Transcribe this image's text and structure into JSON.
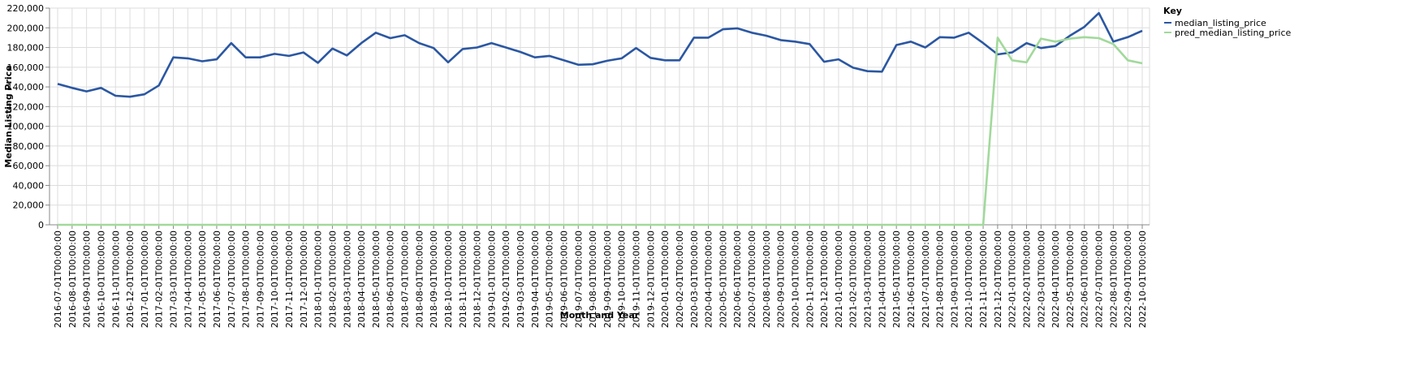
{
  "chart_data": {
    "type": "line",
    "xlabel": "Month and Year",
    "ylabel": "Median Listing Price",
    "ylim": [
      0,
      220000
    ],
    "yticks": [
      0,
      20000,
      40000,
      60000,
      80000,
      100000,
      120000,
      140000,
      160000,
      180000,
      200000,
      220000
    ],
    "ytick_labels": [
      "0",
      "20,000",
      "40,000",
      "60,000",
      "80,000",
      "100,000",
      "120,000",
      "140,000",
      "160,000",
      "180,000",
      "200,000",
      "220,000"
    ],
    "grid": true,
    "legend_position": "top-right",
    "legend_title": "Key",
    "x": [
      "2016-07-01T00:00:00",
      "2016-08-01T00:00:00",
      "2016-09-01T00:00:00",
      "2016-10-01T00:00:00",
      "2016-11-01T00:00:00",
      "2016-12-01T00:00:00",
      "2017-01-01T00:00:00",
      "2017-02-01T00:00:00",
      "2017-03-01T00:00:00",
      "2017-04-01T00:00:00",
      "2017-05-01T00:00:00",
      "2017-06-01T00:00:00",
      "2017-07-01T00:00:00",
      "2017-08-01T00:00:00",
      "2017-09-01T00:00:00",
      "2017-10-01T00:00:00",
      "2017-11-01T00:00:00",
      "2017-12-01T00:00:00",
      "2018-01-01T00:00:00",
      "2018-02-01T00:00:00",
      "2018-03-01T00:00:00",
      "2018-04-01T00:00:00",
      "2018-05-01T00:00:00",
      "2018-06-01T00:00:00",
      "2018-07-01T00:00:00",
      "2018-08-01T00:00:00",
      "2018-09-01T00:00:00",
      "2018-10-01T00:00:00",
      "2018-11-01T00:00:00",
      "2018-12-01T00:00:00",
      "2019-01-01T00:00:00",
      "2019-02-01T00:00:00",
      "2019-03-01T00:00:00",
      "2019-04-01T00:00:00",
      "2019-05-01T00:00:00",
      "2019-06-01T00:00:00",
      "2019-07-01T00:00:00",
      "2019-08-01T00:00:00",
      "2019-09-01T00:00:00",
      "2019-10-01T00:00:00",
      "2019-11-01T00:00:00",
      "2019-12-01T00:00:00",
      "2020-01-01T00:00:00",
      "2020-02-01T00:00:00",
      "2020-03-01T00:00:00",
      "2020-04-01T00:00:00",
      "2020-05-01T00:00:00",
      "2020-06-01T00:00:00",
      "2020-07-01T00:00:00",
      "2020-08-01T00:00:00",
      "2020-09-01T00:00:00",
      "2020-10-01T00:00:00",
      "2020-11-01T00:00:00",
      "2020-12-01T00:00:00",
      "2021-01-01T00:00:00",
      "2021-02-01T00:00:00",
      "2021-03-01T00:00:00",
      "2021-04-01T00:00:00",
      "2021-05-01T00:00:00",
      "2021-06-01T00:00:00",
      "2021-07-01T00:00:00",
      "2021-08-01T00:00:00",
      "2021-09-01T00:00:00",
      "2021-10-01T00:00:00",
      "2021-11-01T00:00:00",
      "2021-12-01T00:00:00",
      "2022-01-01T00:00:00",
      "2022-02-01T00:00:00",
      "2022-03-01T00:00:00",
      "2022-04-01T00:00:00",
      "2022-05-01T00:00:00",
      "2022-06-01T00:00:00",
      "2022-07-01T00:00:00",
      "2022-08-01T00:00:00",
      "2022-09-01T00:00:00",
      "2022-10-01T00:00:00"
    ],
    "series": [
      {
        "name": "median_listing_price",
        "color": "#2b57a2",
        "values": [
          143000,
          139000,
          135500,
          139000,
          131000,
          130000,
          132500,
          141500,
          170000,
          169000,
          166000,
          168000,
          184500,
          170000,
          170000,
          173500,
          171500,
          175000,
          164500,
          179000,
          172000,
          184500,
          195000,
          189500,
          192500,
          184500,
          179500,
          165000,
          178500,
          180000,
          184500,
          180000,
          175500,
          170000,
          171500,
          167000,
          162500,
          163000,
          166500,
          169000,
          179500,
          169500,
          167000,
          167000,
          190000,
          190000,
          198500,
          199500,
          195000,
          192000,
          187500,
          186000,
          183500,
          165500,
          168000,
          159500,
          156000,
          155500,
          182500,
          186000,
          180000,
          190500,
          190000,
          195000,
          184500,
          173000,
          175000,
          184500,
          179500,
          181500,
          192000,
          201000,
          215000,
          186000,
          190500,
          197000
        ]
      },
      {
        "name": "pred_median_listing_price",
        "color": "#a1d99b",
        "values": [
          0,
          0,
          0,
          0,
          0,
          0,
          0,
          0,
          0,
          0,
          0,
          0,
          0,
          0,
          0,
          0,
          0,
          0,
          0,
          0,
          0,
          0,
          0,
          0,
          0,
          0,
          0,
          0,
          0,
          0,
          0,
          0,
          0,
          0,
          0,
          0,
          0,
          0,
          0,
          0,
          0,
          0,
          0,
          0,
          0,
          0,
          0,
          0,
          0,
          0,
          0,
          0,
          0,
          0,
          0,
          0,
          0,
          0,
          0,
          0,
          0,
          0,
          0,
          0,
          0,
          190000,
          167000,
          165000,
          189000,
          186000,
          189000,
          190500,
          189500,
          183500,
          167000,
          164000
        ]
      }
    ]
  }
}
